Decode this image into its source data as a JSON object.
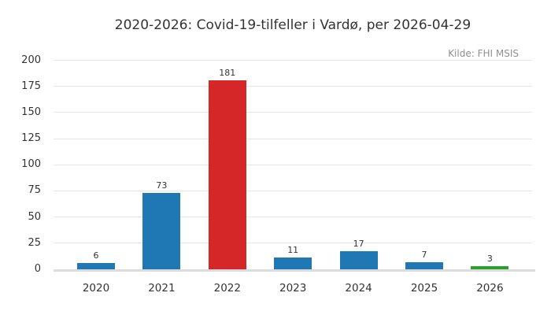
{
  "figure": {
    "title": "2020-2026: Covid-19-tilfeller i Vardø, per 2026-04-29",
    "source_note": "Kilde: FHI MSIS"
  },
  "chart_data": {
    "type": "bar",
    "title": "2020-2026: Covid-19-tilfeller i Vardø, per 2026-04-29",
    "annotation": "Kilde: FHI MSIS",
    "annotation_position": "top-right",
    "categories": [
      "2020",
      "2021",
      "2022",
      "2023",
      "2024",
      "2025",
      "2026"
    ],
    "values": [
      6,
      73,
      181,
      11,
      17,
      7,
      3
    ],
    "bar_colors": [
      "#1f77b4",
      "#1f77b4",
      "#d62728",
      "#1f77b4",
      "#1f77b4",
      "#1f77b4",
      "#2ca02c"
    ],
    "value_labels": [
      6,
      73,
      181,
      11,
      17,
      7,
      3
    ],
    "xlabel": "",
    "ylabel": "",
    "yticks": [
      0,
      25,
      50,
      75,
      100,
      125,
      150,
      175,
      200
    ],
    "ylim": [
      0,
      200
    ],
    "grid": "horizontal",
    "legend": "none"
  },
  "colors": {
    "bar_blue": "#1f77b4",
    "bar_red": "#d62728",
    "bar_green": "#2ca02c",
    "gridline": "#e5e5e5",
    "baseline": "#dcdcdc",
    "text": "#333333",
    "muted_text": "#8f8f8f",
    "background": "#ffffff"
  }
}
